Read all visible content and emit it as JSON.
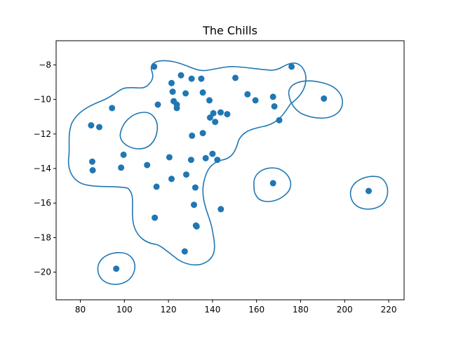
{
  "chart_data": {
    "type": "scatter",
    "title": "The Chills",
    "xlabel": "",
    "ylabel": "",
    "xlim": [
      69,
      227
    ],
    "ylim": [
      -21.6,
      -6.6
    ],
    "xticks": [
      80,
      100,
      120,
      140,
      160,
      180,
      200,
      220
    ],
    "yticks": [
      -8,
      -10,
      -12,
      -14,
      -16,
      -18,
      -20
    ],
    "grid": false,
    "legend": "none",
    "colors": {
      "points": "#1f77b4",
      "contour": "#1f77b4"
    },
    "series": [
      {
        "points": [
          [
            113.5,
            -8.1
          ],
          [
            125.7,
            -8.6
          ],
          [
            130.5,
            -8.8
          ],
          [
            134.9,
            -8.8
          ],
          [
            121.4,
            -9.05
          ],
          [
            150.4,
            -8.75
          ],
          [
            175.9,
            -8.1
          ],
          [
            121.9,
            -9.55
          ],
          [
            127.8,
            -9.65
          ],
          [
            135.6,
            -9.6
          ],
          [
            155.9,
            -9.7
          ],
          [
            167.5,
            -9.85
          ],
          [
            190.6,
            -9.95
          ],
          [
            122.4,
            -10.1
          ],
          [
            138.6,
            -10.05
          ],
          [
            159.5,
            -10.05
          ],
          [
            115.2,
            -10.3
          ],
          [
            123.8,
            -10.3
          ],
          [
            123.8,
            -10.5
          ],
          [
            168.1,
            -10.4
          ],
          [
            94.4,
            -10.5
          ],
          [
            140.4,
            -10.8
          ],
          [
            143.7,
            -10.75
          ],
          [
            146.7,
            -10.85
          ],
          [
            138.9,
            -11.05
          ],
          [
            141.2,
            -11.3
          ],
          [
            170.3,
            -11.2
          ],
          [
            84.9,
            -11.5
          ],
          [
            88.6,
            -11.6
          ],
          [
            135.6,
            -11.95
          ],
          [
            130.7,
            -12.1
          ],
          [
            99.6,
            -13.2
          ],
          [
            140.0,
            -13.15
          ],
          [
            120.4,
            -13.35
          ],
          [
            136.9,
            -13.4
          ],
          [
            130.3,
            -13.5
          ],
          [
            142.2,
            -13.5
          ],
          [
            85.4,
            -13.6
          ],
          [
            110.3,
            -13.8
          ],
          [
            98.5,
            -13.95
          ],
          [
            85.6,
            -14.1
          ],
          [
            128.1,
            -14.35
          ],
          [
            121.4,
            -14.6
          ],
          [
            167.5,
            -14.85
          ],
          [
            114.6,
            -15.05
          ],
          [
            132.2,
            -15.1
          ],
          [
            210.9,
            -15.3
          ],
          [
            131.6,
            -16.1
          ],
          [
            143.8,
            -16.35
          ],
          [
            113.8,
            -16.85
          ],
          [
            132.5,
            -17.3
          ],
          [
            132.8,
            -17.35
          ],
          [
            127.4,
            -18.8
          ],
          [
            96.3,
            -19.8
          ]
        ]
      }
    ]
  }
}
